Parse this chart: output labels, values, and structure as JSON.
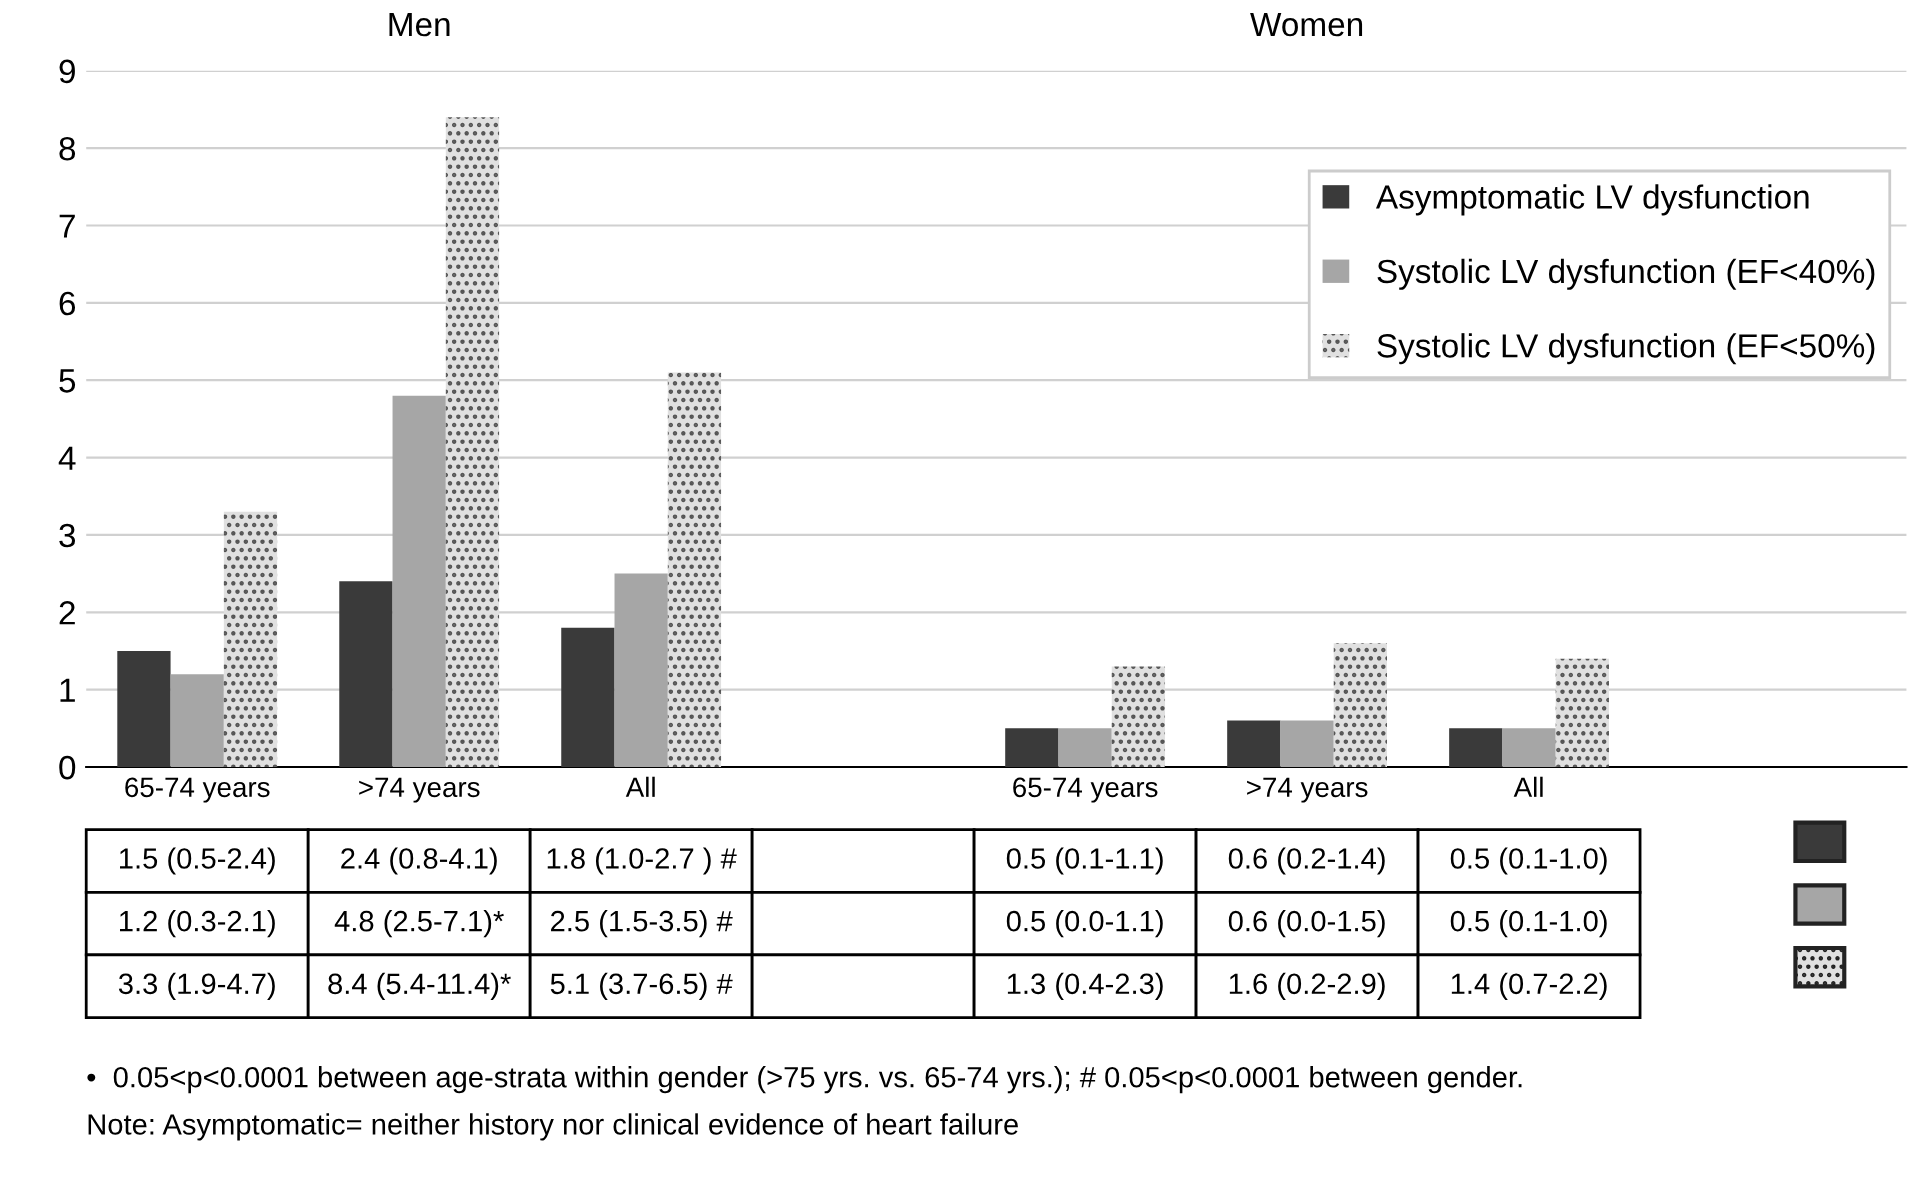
{
  "chart_data": {
    "type": "bar",
    "categories": [
      "65-74 years",
      ">74 years",
      "All",
      null,
      "65-74 years",
      ">74 years",
      "All"
    ],
    "series": [
      {
        "name": "Asymptomatic LV dysfunction",
        "color": "#3a3a3a",
        "values": [
          1.5,
          2.4,
          1.8,
          null,
          0.5,
          0.6,
          0.5
        ],
        "value_labels": [
          "1.5 (0.5-2.4)",
          "2.4 (0.8-4.1)",
          "1.8 (1.0-2.7 ) #",
          null,
          "0.5 (0.1-1.1)",
          "0.6 (0.2-1.4)",
          "0.5 (0.1-1.0)"
        ]
      },
      {
        "name": "Systolic LV dysfunction (EF<40%)",
        "color": "#a6a6a6",
        "values": [
          1.2,
          4.8,
          2.5,
          null,
          0.5,
          0.6,
          0.5
        ],
        "value_labels": [
          "1.2 (0.3-2.1)",
          "4.8 (2.5-7.1)*",
          "2.5 (1.5-3.5) #",
          null,
          "0.5 (0.0-1.1)",
          "0.6 (0.0-1.5)",
          "0.5 (0.1-1.0)"
        ]
      },
      {
        "name": "Systolic LV dysfunction (EF<50%)",
        "color": "#e0e0e0",
        "values": [
          3.3,
          8.4,
          5.1,
          null,
          1.3,
          1.6,
          1.4
        ],
        "value_labels": [
          "3.3 (1.9-4.7)",
          "8.4 (5.4-11.4)*",
          "5.1 (3.7-6.5) #",
          null,
          "1.3 (0.4-2.3)",
          "1.6 (0.2-2.9)",
          "1.4 (0.7-2.2)"
        ]
      }
    ],
    "ylim": [
      0,
      9
    ],
    "yticks": [
      0,
      1,
      2,
      3,
      4,
      5,
      6,
      7,
      8,
      9
    ],
    "grid": "y",
    "legend": "top right",
    "annotations": [
      "Men",
      "Women",
      "•  0.05<p<0.0001 between age-strata within gender (>75 yrs. vs. 65-74 yrs.); # 0.05<p<0.0001 between gender.",
      "Note: Asymptomatic= neither history nor clinical evidence of heart failure"
    ]
  }
}
